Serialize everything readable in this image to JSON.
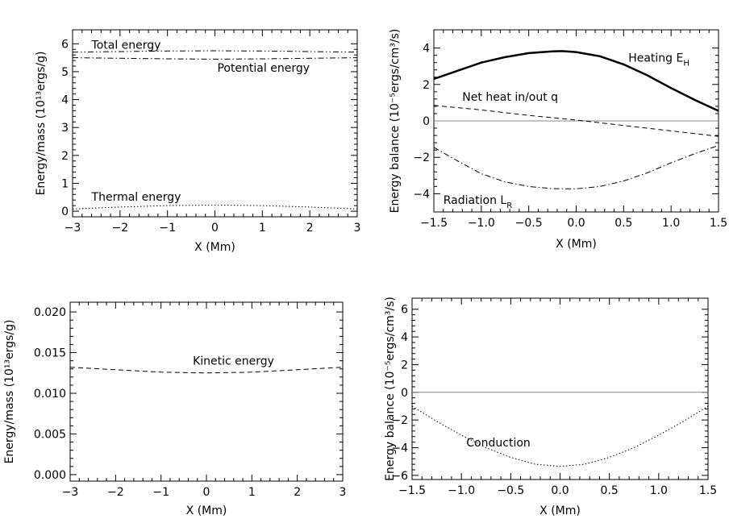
{
  "chart_data": [
    {
      "type": "line",
      "xlabel": "X (Mm)",
      "ylabel": "Energy/mass (10¹³ergs/g)",
      "xlim": [
        -3,
        3
      ],
      "ylim": [
        -0.2,
        6.5
      ],
      "xticks": [
        -3,
        -2,
        -1,
        0,
        1,
        2,
        3
      ],
      "xtick_labels": [
        "−3",
        "−2",
        "−1",
        "0",
        "1",
        "2",
        "3"
      ],
      "yticks": [
        0,
        1,
        2,
        3,
        4,
        5,
        6
      ],
      "ytick_labels": [
        "0",
        "1",
        "2",
        "3",
        "4",
        "5",
        "6"
      ],
      "grid": false,
      "series": [
        {
          "name": "Total energy",
          "style": "dash-dot-dot",
          "x": [
            -3,
            -2,
            -1,
            0,
            1,
            2,
            3
          ],
          "y": [
            5.7,
            5.72,
            5.74,
            5.75,
            5.74,
            5.72,
            5.7
          ]
        },
        {
          "name": "Potential energy",
          "style": "dash-dot",
          "x": [
            -3,
            -2,
            -1,
            0,
            1,
            2,
            3
          ],
          "y": [
            5.5,
            5.48,
            5.46,
            5.45,
            5.46,
            5.48,
            5.5
          ]
        },
        {
          "name": "Thermal energy",
          "style": "dotted",
          "x": [
            -3,
            -2,
            -1,
            0,
            1,
            2,
            3
          ],
          "y": [
            0.08,
            0.15,
            0.2,
            0.22,
            0.2,
            0.15,
            0.08
          ]
        }
      ],
      "annotations": [
        {
          "text": "Total energy",
          "x": -2.6,
          "y": 5.82
        },
        {
          "text": "Potential energy",
          "x": 0.05,
          "y": 5.0
        },
        {
          "text": "Thermal energy",
          "x": -2.6,
          "y": 0.38
        }
      ]
    },
    {
      "type": "line",
      "xlabel": "X (Mm)",
      "ylabel": "Energy balance (10⁻⁵ergs/cm³/s)",
      "xlim": [
        -1.5,
        1.5
      ],
      "ylim": [
        -5,
        5
      ],
      "xticks": [
        -1.5,
        -1.0,
        -0.5,
        0.0,
        0.5,
        1.0,
        1.5
      ],
      "xtick_labels": [
        "−1.5",
        "−1.0",
        "−0.5",
        "0.0",
        "0.5",
        "1.0",
        "1.5"
      ],
      "yticks": [
        -4,
        -2,
        0,
        2,
        4
      ],
      "ytick_labels": [
        "−4",
        "−2",
        "0",
        "2",
        "4"
      ],
      "grid": false,
      "zero_line": true,
      "series": [
        {
          "name": "Heating E_H",
          "style": "thick",
          "x": [
            -1.5,
            -1.25,
            -1.0,
            -0.75,
            -0.5,
            -0.25,
            -0.15,
            0.0,
            0.25,
            0.5,
            0.75,
            1.0,
            1.25,
            1.5
          ],
          "y": [
            2.3,
            2.75,
            3.2,
            3.5,
            3.72,
            3.82,
            3.83,
            3.78,
            3.55,
            3.1,
            2.5,
            1.8,
            1.15,
            0.55
          ]
        },
        {
          "name": "Net heat in/out q",
          "style": "dashed",
          "x": [
            -1.5,
            -1.0,
            -0.5,
            0.0,
            0.5,
            1.0,
            1.5
          ],
          "y": [
            0.85,
            0.6,
            0.3,
            0.05,
            -0.25,
            -0.55,
            -0.85
          ]
        },
        {
          "name": "Radiation L_R",
          "style": "dash-dot",
          "x": [
            -1.5,
            -1.25,
            -1.0,
            -0.75,
            -0.5,
            -0.25,
            0.0,
            0.25,
            0.5,
            0.75,
            1.0,
            1.25,
            1.5
          ],
          "y": [
            -1.45,
            -2.2,
            -2.9,
            -3.35,
            -3.6,
            -3.72,
            -3.73,
            -3.6,
            -3.3,
            -2.85,
            -2.3,
            -1.8,
            -1.35
          ]
        }
      ],
      "annotations": [
        {
          "text": "Heating E",
          "sub": "H",
          "x": 0.55,
          "y": 3.25
        },
        {
          "text": "Net heat in/out q",
          "x": -1.2,
          "y": 1.1
        },
        {
          "text": "Radiation L",
          "sub": "R",
          "x": -1.4,
          "y": -4.55
        }
      ]
    },
    {
      "type": "line",
      "xlabel": "X (Mm)",
      "ylabel": "Energy/mass (10¹³ergs/g)",
      "xlim": [
        -3,
        3
      ],
      "ylim": [
        -0.0008,
        0.0212
      ],
      "xticks": [
        -3,
        -2,
        -1,
        0,
        1,
        2,
        3
      ],
      "xtick_labels": [
        "−3",
        "−2",
        "−1",
        "0",
        "1",
        "2",
        "3"
      ],
      "yticks": [
        0.0,
        0.005,
        0.01,
        0.015,
        0.02
      ],
      "ytick_labels": [
        "0.000",
        "0.005",
        "0.010",
        "0.015",
        "0.020"
      ],
      "grid": false,
      "series": [
        {
          "name": "Kinetic energy",
          "style": "dashed",
          "x": [
            -3,
            -2,
            -1,
            0,
            1,
            2,
            3
          ],
          "y": [
            0.0132,
            0.0129,
            0.0126,
            0.0125,
            0.0126,
            0.0129,
            0.0132
          ]
        }
      ],
      "annotations": [
        {
          "text": "Kinetic energy",
          "x": -0.3,
          "y": 0.0135
        }
      ]
    },
    {
      "type": "line",
      "xlabel": "X (Mm)",
      "ylabel": "Energy balance (10⁻⁵ergs/cm³/s)",
      "xlim": [
        -1.5,
        1.5
      ],
      "ylim": [
        -6.3,
        6.8
      ],
      "xticks": [
        -1.5,
        -1.0,
        -0.5,
        0.0,
        0.5,
        1.0,
        1.5
      ],
      "xtick_labels": [
        "−1.5",
        "−1.0",
        "−0.5",
        "0.0",
        "0.5",
        "1.0",
        "1.5"
      ],
      "yticks": [
        -6,
        -4,
        -2,
        0,
        2,
        4,
        6
      ],
      "ytick_labels": [
        "−6",
        "−4",
        "−2",
        "0",
        "2",
        "4",
        "6"
      ],
      "grid": false,
      "zero_line": true,
      "series": [
        {
          "name": "Conduction",
          "style": "dotted",
          "x": [
            -1.5,
            -1.25,
            -1.0,
            -0.75,
            -0.5,
            -0.25,
            0.0,
            0.25,
            0.5,
            0.75,
            1.0,
            1.25,
            1.5
          ],
          "y": [
            -1.0,
            -2.1,
            -3.1,
            -4.0,
            -4.7,
            -5.2,
            -5.35,
            -5.2,
            -4.7,
            -4.0,
            -3.1,
            -2.1,
            -1.0
          ]
        }
      ],
      "annotations": [
        {
          "text": "Conduction",
          "x": -0.95,
          "y": -3.9
        }
      ]
    }
  ]
}
